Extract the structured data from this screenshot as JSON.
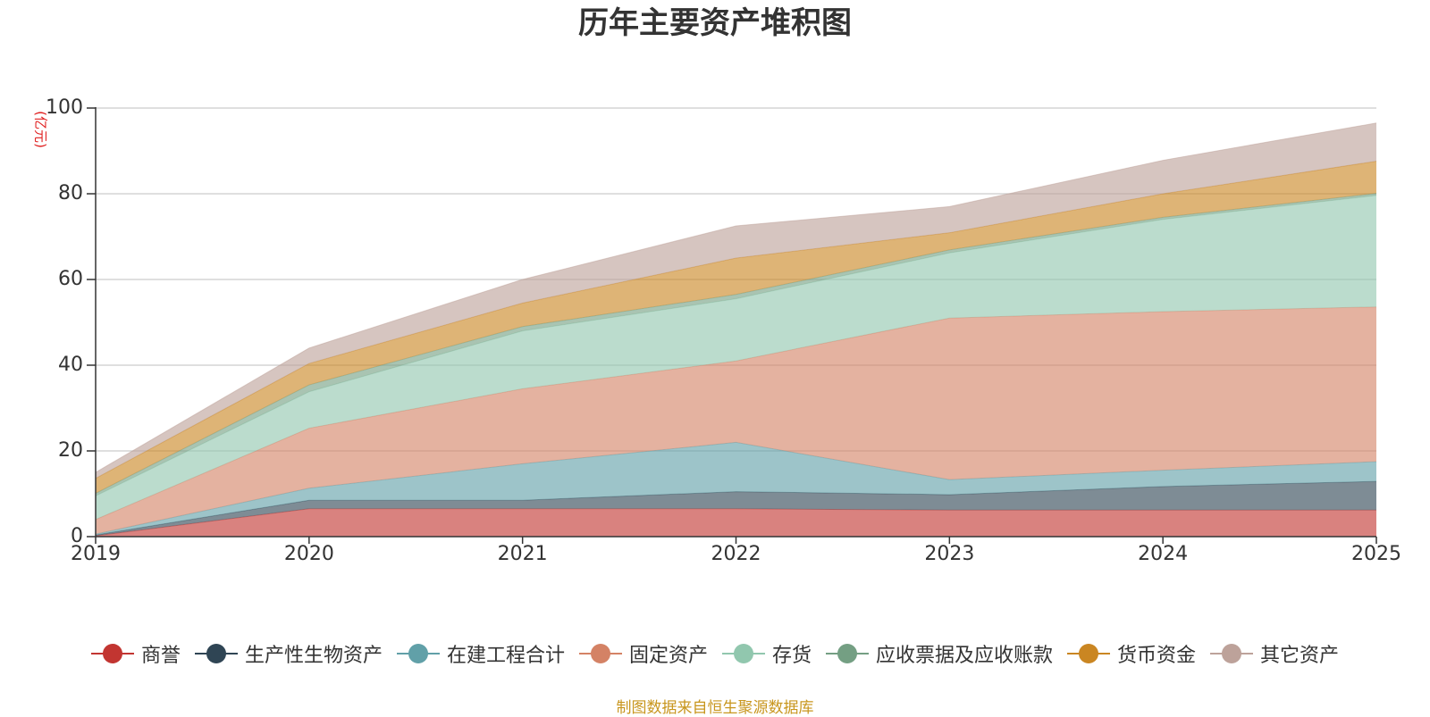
{
  "chart_data": {
    "type": "area",
    "stacked": true,
    "title": "历年主要资产堆积图",
    "unit_label": "(亿元)",
    "x": [
      "2019",
      "2020",
      "2021",
      "2022",
      "2023",
      "2024",
      "2025"
    ],
    "ylim": [
      0,
      100
    ],
    "yticks": [
      0,
      20,
      40,
      60,
      80,
      100
    ],
    "grid": true,
    "legend_position": "bottom",
    "source": "制图数据来自恒生聚源数据库",
    "series": [
      {
        "name": "商誉",
        "color": "#c23531",
        "values": [
          0.2,
          6.5,
          6.5,
          6.5,
          6.2,
          6.2,
          6.2
        ]
      },
      {
        "name": "生产性生物资产",
        "color": "#2f4554",
        "values": [
          0.2,
          2.0,
          2.0,
          4.0,
          3.6,
          5.5,
          6.7
        ]
      },
      {
        "name": "在建工程合计",
        "color": "#61a0a8",
        "values": [
          0.2,
          2.8,
          8.5,
          11.5,
          3.5,
          3.8,
          4.6
        ]
      },
      {
        "name": "固定资产",
        "color": "#d48265",
        "values": [
          3.4,
          14.0,
          17.5,
          19.0,
          37.7,
          37.0,
          36.1
        ]
      },
      {
        "name": "存货",
        "color": "#91c7ae",
        "values": [
          5.5,
          8.5,
          13.5,
          14.5,
          15.2,
          21.5,
          26.0
        ]
      },
      {
        "name": "应收票据及应收账款",
        "color": "#749f83",
        "values": [
          0.6,
          1.6,
          1.0,
          1.0,
          0.7,
          0.5,
          0.5
        ]
      },
      {
        "name": "货币资金",
        "color": "#ca8622",
        "values": [
          3.5,
          5.0,
          5.5,
          8.5,
          4.0,
          5.5,
          7.5
        ]
      },
      {
        "name": "其它资产",
        "color": "#bda29a",
        "values": [
          1.4,
          3.6,
          5.5,
          7.5,
          6.1,
          7.8,
          8.9
        ]
      }
    ]
  }
}
